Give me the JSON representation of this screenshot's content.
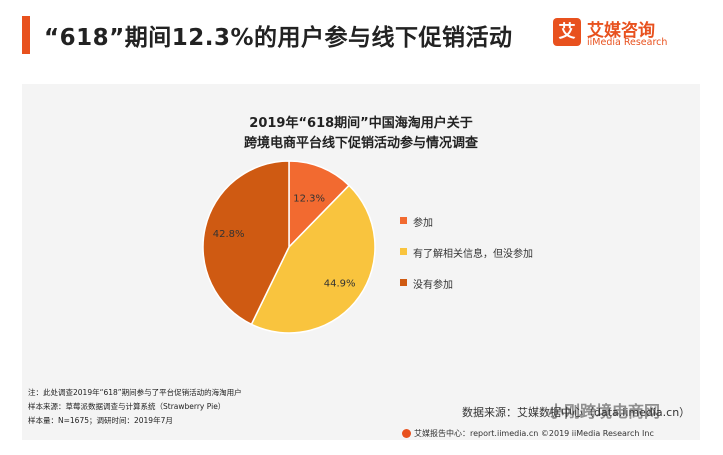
{
  "header": {
    "headline": "“618”期间12.3%的用户参与线下促销活动"
  },
  "logo": {
    "mark": "艾",
    "name_cn": "艾媒咨询",
    "name_en": "iiMedia Research"
  },
  "chart_data": {
    "type": "pie",
    "title_line1": "2019年“618期间”中国海淘用户关于",
    "title_line2": "跨境电商平台线下促销活动参与情况调查",
    "slices": [
      {
        "label": "参加",
        "value": 12.3,
        "display": "12.3%",
        "color": "#f26a30"
      },
      {
        "label": "有了解相关信息，但没参加",
        "value": 44.9,
        "display": "44.9%",
        "color": "#f9c43e"
      },
      {
        "label": "没有参加",
        "value": 42.8,
        "display": "42.8%",
        "color": "#cf5a12"
      }
    ],
    "legend_position": "right"
  },
  "notes": {
    "line1": "注：此处调查2019年“618”期间参与了平台促销活动的海淘用户",
    "line2": "样本来源：草莓派数据调查与计算系统（Strawberry Pie）",
    "line3": "样本量：N=1675；调研时间：2019年7月"
  },
  "source": "数据来源：艾媒数据中心（data.iimedia.cn）",
  "footer": "艾媒报告中心：report.iimedia.cn ©2019 iiMedia Research Inc",
  "watermark": "小刚跨境电商网"
}
